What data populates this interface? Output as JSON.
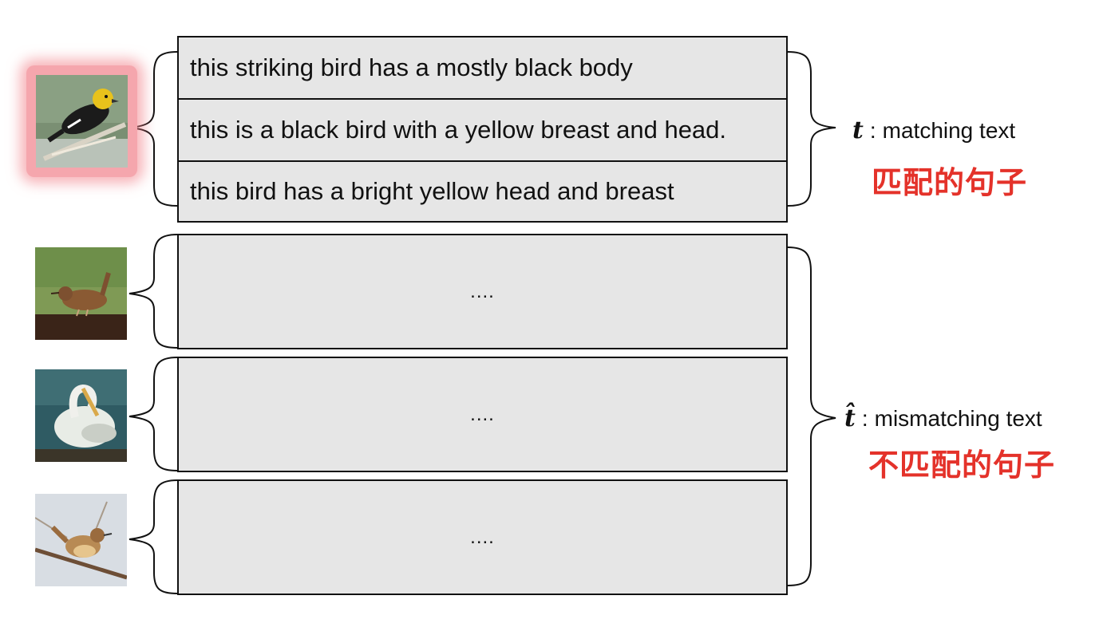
{
  "matching_group": {
    "captions": [
      "this striking bird has a mostly black body",
      "this is a black bird with a yellow breast and head.",
      "this bird has a bright yellow head and breast"
    ]
  },
  "mismatching_groups": [
    {
      "placeholder": "...."
    },
    {
      "placeholder": "...."
    },
    {
      "placeholder": "...."
    }
  ],
  "labels": {
    "matching": {
      "symbol": "t",
      "colon": ":",
      "text": "matching text",
      "chinese": "匹配的句子"
    },
    "mismatching": {
      "symbol": "t̂",
      "colon": ":",
      "text": "mismatching text",
      "chinese": "不匹配的句子"
    }
  },
  "colors": {
    "box_fill": "#e6e6e6",
    "highlight_glow": "#f5a6ad",
    "chinese_text": "#e4322a"
  },
  "images": [
    {
      "icon": "yellow-headed-blackbird-photo"
    },
    {
      "icon": "wren-on-branch-photo"
    },
    {
      "icon": "pelican-photo"
    },
    {
      "icon": "carolina-wren-photo"
    }
  ]
}
